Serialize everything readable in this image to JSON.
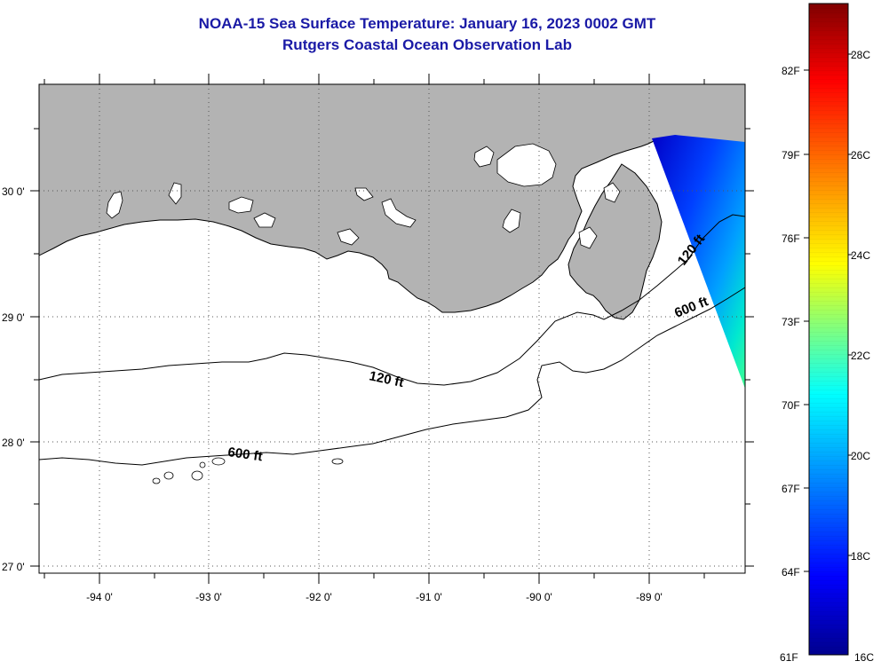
{
  "title": "NOAA-15 Sea Surface Temperature:  January 16, 2023 0002 GMT",
  "subtitle": "Rutgers Coastal Ocean Observation Lab",
  "axes": {
    "lon_ticks": [
      "-94 0'",
      "-93 0'",
      "-92 0'",
      "-91 0'",
      "-90 0'",
      "-89 0'"
    ],
    "lat_ticks": [
      "30 0'",
      "29 0'",
      "28 0'",
      "27 0'"
    ]
  },
  "contours": {
    "c120": [
      "120 ft",
      "120 ft"
    ],
    "c600": [
      "600 ft",
      "600 ft"
    ]
  },
  "colorbar": {
    "f_labels": [
      "82F",
      "79F",
      "76F",
      "73F",
      "70F",
      "67F",
      "64F",
      "61F"
    ],
    "c_labels": [
      "28C",
      "26C",
      "24C",
      "22C",
      "20C",
      "18C",
      "16C"
    ],
    "stops": [
      "#00008f",
      "#0000ff",
      "#00ffff",
      "#ffff00",
      "#ff0000",
      "#800000"
    ]
  },
  "colors": {
    "land": "#b3b3b3",
    "title": "#1a1aa6"
  }
}
